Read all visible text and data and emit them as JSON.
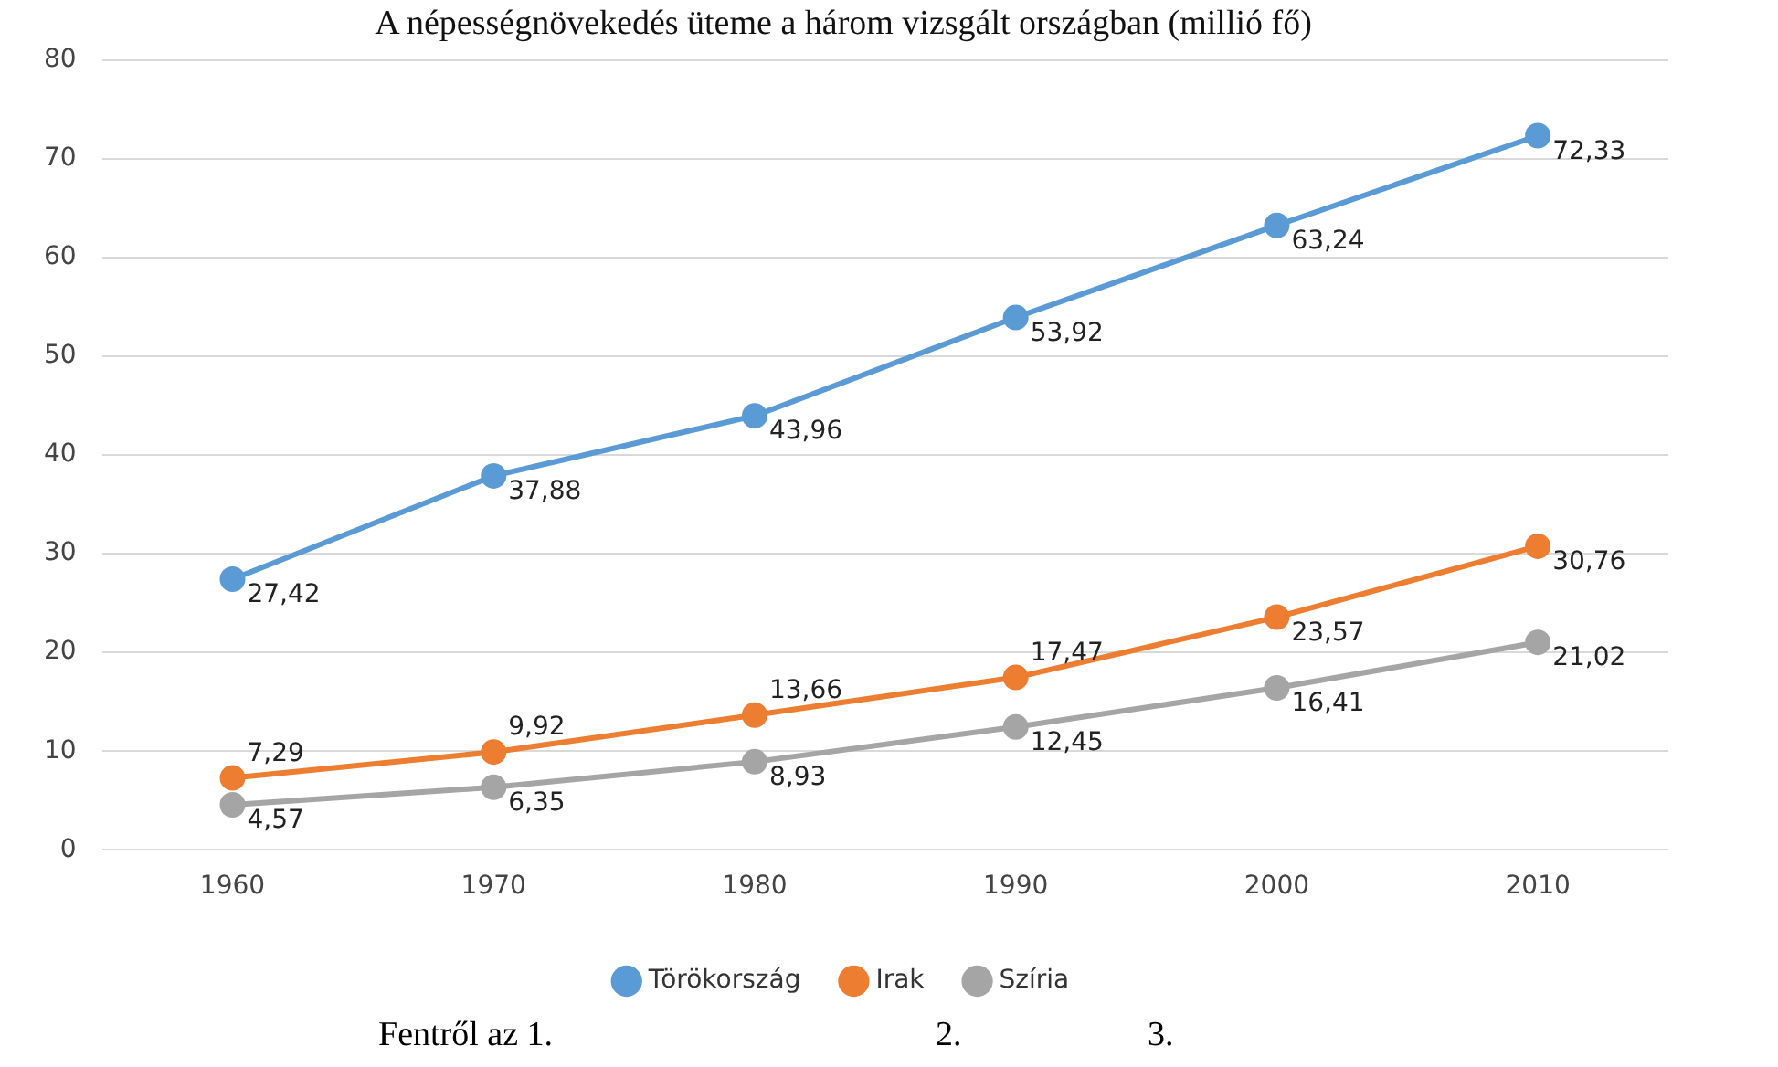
{
  "chart_data": {
    "type": "line",
    "title": "A népességnövekedés üteme a három vizsgált országban (millió fő)",
    "categories": [
      "1960",
      "1970",
      "1980",
      "1990",
      "2000",
      "2010"
    ],
    "series": [
      {
        "name": "Törökország",
        "color": "#5b9bd5",
        "values": [
          27.42,
          37.88,
          43.96,
          53.92,
          63.24,
          72.33
        ],
        "value_labels": [
          "27,42",
          "37,88",
          "43,96",
          "53,92",
          "63,24",
          "72,33"
        ]
      },
      {
        "name": "Irak",
        "color": "#ed7d31",
        "values": [
          7.29,
          9.92,
          13.66,
          17.47,
          23.57,
          30.76
        ],
        "value_labels": [
          "7,29",
          "9,92",
          "13,66",
          "17,47",
          "23,57",
          "30,76"
        ]
      },
      {
        "name": "Szíria",
        "color": "#a5a5a5",
        "values": [
          4.57,
          6.35,
          8.93,
          12.45,
          16.41,
          21.02
        ],
        "value_labels": [
          "4,57",
          "6,35",
          "8,93",
          "12,45",
          "16,41",
          "21,02"
        ]
      }
    ],
    "ylim": [
      0,
      80
    ],
    "yticks": [
      0,
      10,
      20,
      30,
      40,
      50,
      60,
      70,
      80
    ],
    "grid": "y",
    "legend": "bottom",
    "marker": "circle",
    "line_style": "solid",
    "annotations": [
      "Fentről az 1.",
      "2.",
      "3."
    ]
  }
}
